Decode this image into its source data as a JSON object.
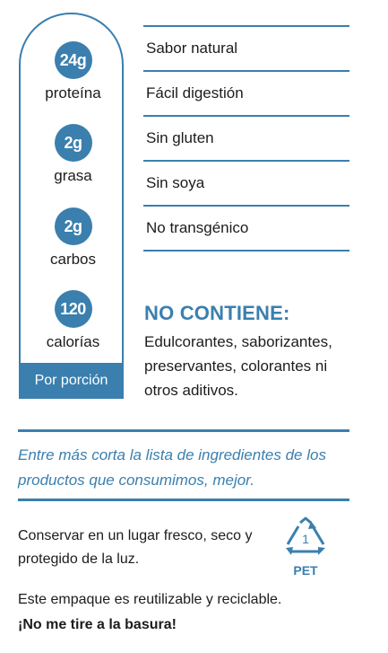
{
  "nutrition": {
    "protein": {
      "value": "24g",
      "label": "proteína"
    },
    "fat": {
      "value": "2g",
      "label": "grasa"
    },
    "carbs": {
      "value": "2g",
      "label": "carbos"
    },
    "calories": {
      "value": "120",
      "label": "calorías"
    },
    "per_serving": "Por porción"
  },
  "features": [
    "Sabor natural",
    "Fácil digestión",
    "Sin gluten",
    "Sin soya",
    "No transgénico"
  ],
  "no_contiene": {
    "title": "NO CONTIENE:",
    "text": "Edulcorantes, saborizantes, preservantes, colorantes ni otros aditivos."
  },
  "quote": "Entre más corta la lista de ingredientes de los productos que consumimos, mejor.",
  "storage": "Conservar en un lugar fresco, seco y protegido de la luz.",
  "recycle": {
    "number": "1",
    "label": "PET"
  },
  "packaging": {
    "text": "Este empaque es reutilizable y reciclable.",
    "slogan": "¡No me tire a la basura!"
  },
  "colors": {
    "accent": "#3a7fae"
  }
}
